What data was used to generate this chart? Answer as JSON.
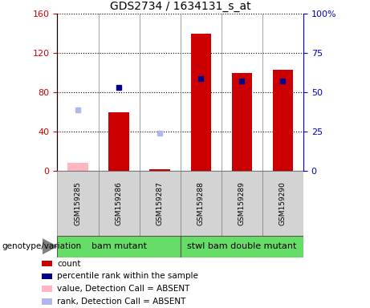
{
  "title": "GDS2734 / 1634131_s_at",
  "samples": [
    "GSM159285",
    "GSM159286",
    "GSM159287",
    "GSM159288",
    "GSM159289",
    "GSM159290"
  ],
  "count_values": [
    null,
    60,
    2,
    140,
    100,
    103
  ],
  "count_absent": [
    8,
    null,
    null,
    null,
    null,
    null
  ],
  "percentile_rank": [
    null,
    53,
    null,
    59,
    57,
    57
  ],
  "rank_absent": [
    39,
    null,
    24,
    null,
    null,
    null
  ],
  "ylim_left": [
    0,
    160
  ],
  "ylim_right": [
    0,
    100
  ],
  "yticks_left": [
    0,
    40,
    80,
    120,
    160
  ],
  "yticks_right": [
    0,
    25,
    50,
    75,
    100
  ],
  "yticklabels_right": [
    "0",
    "25",
    "50",
    "75",
    "100%"
  ],
  "bar_color": "#cc0000",
  "bar_absent_color": "#ffb6c1",
  "rank_color": "#00008B",
  "rank_absent_color": "#b0b8e8",
  "legend_items": [
    {
      "color": "#cc0000",
      "label": "count"
    },
    {
      "color": "#00008B",
      "label": "percentile rank within the sample"
    },
    {
      "color": "#ffb6c1",
      "label": "value, Detection Call = ABSENT"
    },
    {
      "color": "#b0b8e8",
      "label": "rank, Detection Call = ABSENT"
    }
  ],
  "group1_label": "bam mutant",
  "group2_label": "stwl bam double mutant",
  "group_color": "#66DD66",
  "geno_label": "genotype/variation"
}
